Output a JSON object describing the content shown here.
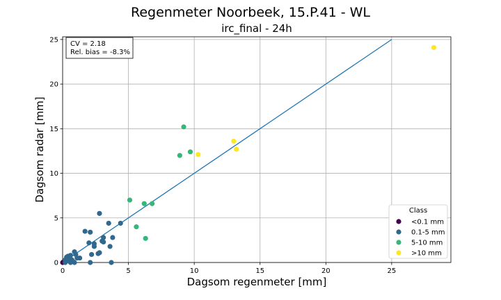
{
  "chart_data": {
    "type": "scatter",
    "suptitle": "Regenmeter Noorbeek, 15.P.41 - WL",
    "title": "irc_final - 24h",
    "xlabel": "Dagsom regenmeter [mm]",
    "ylabel": "Dagsom radar [mm]",
    "xlim": [
      0,
      29.5
    ],
    "ylim": [
      0,
      25.3
    ],
    "xticks": [
      "0",
      "5",
      "10",
      "15",
      "20",
      "25"
    ],
    "yticks": [
      "0",
      "5",
      "10",
      "15",
      "20",
      "25"
    ],
    "grid": true,
    "annotation": [
      "CV = 2.18",
      "Rel. bias = -8.3%"
    ],
    "line": {
      "x": [
        0,
        25
      ],
      "y": [
        0,
        25
      ],
      "color": "#1f77b4"
    },
    "legend": {
      "title": "Class",
      "position": "lower-right",
      "entries": [
        "<0.1 mm",
        "0.1-5 mm",
        "5-10 mm",
        ">10 mm"
      ]
    },
    "series": [
      {
        "name": "<0.1 mm",
        "color": "#440154",
        "x": [
          0.0,
          0.05,
          0.03
        ],
        "y": [
          0.0,
          0.05,
          0.02
        ]
      },
      {
        "name": "0.1-5 mm",
        "color": "#31688e",
        "x": [
          0.2,
          0.3,
          0.4,
          0.6,
          0.5,
          0.8,
          0.9,
          1.0,
          1.1,
          0.7,
          0.3,
          1.3,
          0.9,
          1.7,
          2.0,
          2.1,
          2.1,
          2.4,
          2.4,
          2.2,
          2.7,
          2.8,
          2.8,
          3.0,
          3.1,
          3.1,
          3.5,
          3.6,
          3.8,
          3.7,
          4.4,
          0.2,
          0.6,
          0.4
        ],
        "y": [
          0.3,
          0.6,
          0.7,
          0.8,
          0.4,
          0.1,
          1.2,
          0.9,
          0.5,
          0.3,
          0.2,
          0.5,
          0.0,
          3.5,
          2.2,
          3.4,
          0.0,
          1.8,
          2.1,
          0.9,
          1.0,
          5.5,
          1.1,
          2.4,
          2.3,
          2.8,
          4.4,
          1.8,
          2.8,
          0.0,
          4.4,
          0.0,
          0.0,
          0.2
        ]
      },
      {
        "name": "5-10 mm",
        "color": "#35b779",
        "x": [
          5.1,
          5.6,
          6.2,
          6.3,
          6.8,
          8.9,
          9.2,
          9.7
        ],
        "y": [
          7.0,
          4.0,
          6.6,
          2.7,
          6.6,
          12.0,
          15.2,
          12.4
        ]
      },
      {
        "name": ">10 mm",
        "color": "#fde725",
        "x": [
          10.3,
          13.0,
          13.2,
          28.2
        ],
        "y": [
          12.1,
          13.6,
          12.7,
          24.1
        ]
      }
    ]
  }
}
